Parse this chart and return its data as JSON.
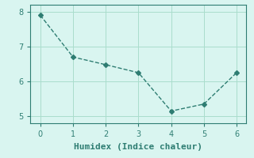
{
  "x": [
    0,
    1,
    2,
    3,
    4,
    5,
    6
  ],
  "y": [
    7.9,
    6.7,
    6.48,
    6.25,
    5.15,
    5.35,
    6.25
  ],
  "xlabel": "Humidex (Indice chaleur)",
  "ylabel": "",
  "line_color": "#2e7d72",
  "background_color": "#d9f5f0",
  "ylim": [
    4.8,
    8.2
  ],
  "xlim": [
    -0.3,
    6.3
  ],
  "yticks": [
    5,
    6,
    7,
    8
  ],
  "xticks": [
    0,
    1,
    2,
    3,
    4,
    5,
    6
  ],
  "grid_color": "#aaddcc",
  "marker": "D",
  "markersize": 3,
  "linewidth": 1.0,
  "linestyle": "--",
  "xlabel_fontsize": 8,
  "tick_fontsize": 7,
  "tick_color": "#2e7d72",
  "spine_color": "#2e7d72"
}
